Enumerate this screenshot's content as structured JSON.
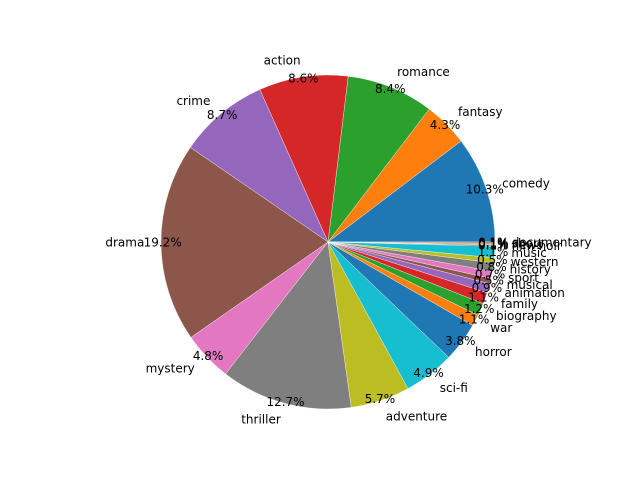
{
  "chart_data": {
    "type": "pie",
    "start_angle_deg": 0,
    "direction": "counterclockwise",
    "slices": [
      {
        "label": "comedy",
        "value": 10.3,
        "pct_label": "10.3%",
        "color": "#1f77b4"
      },
      {
        "label": "fantasy",
        "value": 4.3,
        "pct_label": "4.3%",
        "color": "#ff7f0e"
      },
      {
        "label": "romance",
        "value": 8.4,
        "pct_label": "8.4%",
        "color": "#2ca02c"
      },
      {
        "label": "action",
        "value": 8.6,
        "pct_label": "8.6%",
        "color": "#d62728"
      },
      {
        "label": "crime",
        "value": 8.7,
        "pct_label": "8.7%",
        "color": "#9467bd"
      },
      {
        "label": "drama",
        "value": 19.2,
        "pct_label": "19.2%",
        "color": "#8c564b"
      },
      {
        "label": "mystery",
        "value": 4.8,
        "pct_label": "4.8%",
        "color": "#e377c2"
      },
      {
        "label": "thriller",
        "value": 12.7,
        "pct_label": "12.7%",
        "color": "#7f7f7f"
      },
      {
        "label": "adventure",
        "value": 5.7,
        "pct_label": "5.7%",
        "color": "#bcbd22"
      },
      {
        "label": "sci-fi",
        "value": 4.9,
        "pct_label": "4.9%",
        "color": "#17becf"
      },
      {
        "label": "horror",
        "value": 3.8,
        "pct_label": "3.8%",
        "color": "#1f77b4"
      },
      {
        "label": "war",
        "value": 1.1,
        "pct_label": "1.1%",
        "color": "#ff7f0e"
      },
      {
        "label": "biography",
        "value": 1.2,
        "pct_label": "1.2%",
        "color": "#2ca02c"
      },
      {
        "label": "family",
        "value": 1.1,
        "pct_label": "1.1%",
        "color": "#d62728"
      },
      {
        "label": "animation",
        "value": 0.9,
        "pct_label": "0.9%",
        "color": "#9467bd"
      },
      {
        "label": "musical",
        "value": 0.5,
        "pct_label": "0.5%",
        "color": "#8c564b"
      },
      {
        "label": "sport",
        "value": 0.7,
        "pct_label": "0.7%",
        "color": "#e377c2"
      },
      {
        "label": "history",
        "value": 0.8,
        "pct_label": "0.8%",
        "color": "#7f7f7f"
      },
      {
        "label": "western",
        "value": 0.5,
        "pct_label": "0.5%",
        "color": "#bcbd22"
      },
      {
        "label": "music",
        "value": 1.1,
        "pct_label": "1.1%",
        "color": "#17becf"
      },
      {
        "label": "film-noir",
        "value": 0.1,
        "pct_label": "0.1%",
        "color": "#1f77b4"
      },
      {
        "label": "news",
        "value": 0.1,
        "pct_label": "0.1%",
        "color": "#ff7f0e"
      },
      {
        "label": "short",
        "value": 0.1,
        "pct_label": "0.1%",
        "color": "#2ca02c"
      },
      {
        "label": "documentary",
        "value": 0.1,
        "pct_label": "0.1%",
        "color": "#d62728"
      }
    ]
  }
}
